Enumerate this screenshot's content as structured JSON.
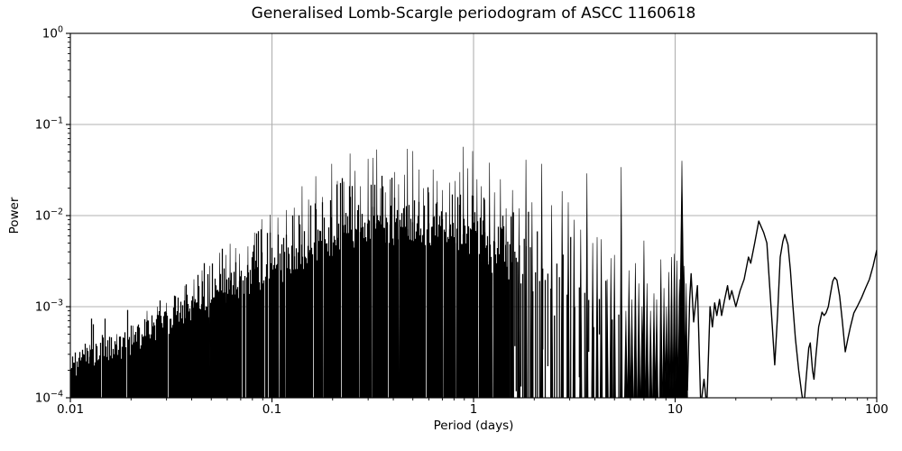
{
  "figure": {
    "title": "Generalised Lomb-Scargle periodogram of ASCC 1160618",
    "xlabel": "Period (days)",
    "ylabel": "Power",
    "background_color": "#ffffff",
    "text_color": "#000000"
  },
  "chart_data": {
    "type": "line",
    "title": "Generalised Lomb-Scargle periodogram of ASCC 1160618",
    "xlabel": "Period (days)",
    "ylabel": "Power",
    "xscale": "log",
    "yscale": "log",
    "xlim": [
      0.01,
      100
    ],
    "ylim": [
      0.0001,
      1
    ],
    "grid": true,
    "grid_color": "#b0b0b0",
    "line_color": "#000000",
    "x_ticks": {
      "values": [
        0.01,
        0.1,
        1,
        10,
        100
      ],
      "labels": [
        "0.01",
        "0.1",
        "1",
        "10",
        "100"
      ]
    },
    "y_ticks": {
      "values": [
        1,
        0.1,
        0.01,
        0.001,
        0.0001
      ],
      "base": "10",
      "exponents": [
        "0",
        "−1",
        "−2",
        "−3",
        "−4"
      ]
    },
    "dense_region": [
      0.01,
      5.3
    ],
    "noise_seed": 9,
    "noise_envelope_top": [
      [
        0.01,
        0.00028
      ],
      [
        0.013,
        0.00036
      ],
      [
        0.016,
        0.00042
      ],
      [
        0.02,
        0.00055
      ],
      [
        0.024,
        0.0008
      ],
      [
        0.03,
        0.001
      ],
      [
        0.037,
        0.0015
      ],
      [
        0.045,
        0.0022
      ],
      [
        0.055,
        0.0032
      ],
      [
        0.07,
        0.0038
      ],
      [
        0.08,
        0.0055
      ],
      [
        0.1,
        0.008
      ],
      [
        0.13,
        0.01
      ],
      [
        0.16,
        0.013
      ],
      [
        0.2,
        0.018
      ],
      [
        0.25,
        0.022
      ],
      [
        0.3,
        0.022
      ],
      [
        0.4,
        0.02
      ],
      [
        0.5,
        0.018
      ],
      [
        0.65,
        0.016
      ],
      [
        0.8,
        0.016
      ],
      [
        1.0,
        0.017
      ],
      [
        1.2,
        0.013
      ],
      [
        1.5,
        0.011
      ],
      [
        2.0,
        0.009
      ],
      [
        2.5,
        0.007
      ],
      [
        3.0,
        0.0055
      ],
      [
        4.0,
        0.0035
      ],
      [
        5.3,
        0.0025
      ]
    ],
    "noise_body_top": [
      [
        0.01,
        0.00022
      ],
      [
        0.02,
        0.0004
      ],
      [
        0.03,
        0.00065
      ],
      [
        0.05,
        0.0011
      ],
      [
        0.07,
        0.0016
      ],
      [
        0.1,
        0.0022
      ],
      [
        0.15,
        0.0032
      ],
      [
        0.2,
        0.0042
      ],
      [
        0.3,
        0.006
      ],
      [
        0.5,
        0.0065
      ],
      [
        0.7,
        0.0055
      ],
      [
        1.0,
        0.0045
      ],
      [
        1.3,
        0.003
      ],
      [
        1.7,
        0.002
      ],
      [
        2.2,
        0.0013
      ],
      [
        3.0,
        0.0008
      ],
      [
        4.0,
        0.00055
      ],
      [
        5.3,
        0.0004
      ]
    ],
    "peaks": [
      [
        0.0125,
        0.00038
      ],
      [
        0.0145,
        0.00042
      ],
      [
        0.017,
        0.0005
      ],
      [
        0.0205,
        0.00062
      ],
      [
        0.024,
        0.0009
      ],
      [
        0.027,
        0.001
      ],
      [
        0.03,
        0.0011
      ],
      [
        0.033,
        0.0013
      ],
      [
        0.037,
        0.0017
      ],
      [
        0.041,
        0.002
      ],
      [
        0.045,
        0.0025
      ],
      [
        0.049,
        0.0028
      ],
      [
        0.055,
        0.0039
      ],
      [
        0.059,
        0.0037
      ],
      [
        0.062,
        0.0049
      ],
      [
        0.066,
        0.0044
      ],
      [
        0.069,
        0.0038
      ],
      [
        0.076,
        0.0046
      ],
      [
        0.082,
        0.0065
      ],
      [
        0.089,
        0.0091
      ],
      [
        0.098,
        0.0102
      ],
      [
        0.107,
        0.0095
      ],
      [
        0.118,
        0.0115
      ],
      [
        0.129,
        0.0122
      ],
      [
        0.141,
        0.021
      ],
      [
        0.152,
        0.015
      ],
      [
        0.165,
        0.027
      ],
      [
        0.178,
        0.016
      ],
      [
        0.198,
        0.037
      ],
      [
        0.211,
        0.024
      ],
      [
        0.227,
        0.0235
      ],
      [
        0.244,
        0.048
      ],
      [
        0.258,
        0.031
      ],
      [
        0.275,
        0.021
      ],
      [
        0.3,
        0.042
      ],
      [
        0.317,
        0.043
      ],
      [
        0.331,
        0.053
      ],
      [
        0.346,
        0.02
      ],
      [
        0.365,
        0.018
      ],
      [
        0.385,
        0.025
      ],
      [
        0.405,
        0.03
      ],
      [
        0.425,
        0.022
      ],
      [
        0.455,
        0.028
      ],
      [
        0.47,
        0.054
      ],
      [
        0.5,
        0.051
      ],
      [
        0.535,
        0.032
      ],
      [
        0.565,
        0.02
      ],
      [
        0.6,
        0.018
      ],
      [
        0.63,
        0.032
      ],
      [
        0.66,
        0.024
      ],
      [
        0.7,
        0.019
      ],
      [
        0.76,
        0.023
      ],
      [
        0.81,
        0.024
      ],
      [
        0.855,
        0.03
      ],
      [
        0.89,
        0.057
      ],
      [
        0.935,
        0.033
      ],
      [
        0.99,
        0.051
      ],
      [
        1.04,
        0.025
      ],
      [
        1.09,
        0.021
      ],
      [
        1.14,
        0.015
      ],
      [
        1.2,
        0.038
      ],
      [
        1.27,
        0.018
      ],
      [
        1.36,
        0.025
      ],
      [
        1.45,
        0.012
      ],
      [
        1.56,
        0.019
      ],
      [
        1.68,
        0.012
      ],
      [
        1.82,
        0.041
      ],
      [
        1.95,
        0.014
      ],
      [
        2.18,
        0.037
      ],
      [
        2.44,
        0.013
      ],
      [
        2.75,
        0.0185
      ],
      [
        2.95,
        0.014
      ],
      [
        3.15,
        0.009
      ],
      [
        3.4,
        0.007
      ],
      [
        3.65,
        0.029
      ],
      [
        3.9,
        0.005
      ],
      [
        4.1,
        0.0058
      ],
      [
        4.3,
        0.0055
      ],
      [
        4.6,
        0.002
      ],
      [
        4.8,
        0.0034
      ],
      [
        5.0,
        0.0037
      ],
      [
        5.4,
        0.034
      ],
      [
        5.7,
        0.0009
      ],
      [
        5.9,
        0.0025
      ],
      [
        6.1,
        0.0012
      ],
      [
        6.35,
        0.003
      ],
      [
        6.6,
        0.0018
      ],
      [
        6.85,
        0.001
      ],
      [
        7.0,
        0.0053
      ],
      [
        7.25,
        0.0018
      ],
      [
        7.55,
        0.0009
      ],
      [
        7.85,
        0.0014
      ],
      [
        8.1,
        0.0012
      ],
      [
        8.5,
        0.0033
      ],
      [
        8.8,
        0.0016
      ],
      [
        9.05,
        0.001
      ],
      [
        9.3,
        0.0024
      ],
      [
        9.6,
        0.0035
      ],
      [
        9.9,
        0.0038
      ],
      [
        10.2,
        0.0032
      ],
      [
        10.5,
        0.002
      ],
      [
        10.8,
        0.04
      ],
      [
        11.1,
        0.0028
      ],
      [
        11.35,
        0.0018
      ]
    ],
    "smooth_tail": [
      [
        11.5,
        0.00012
      ],
      [
        11.8,
        0.0012
      ],
      [
        12.0,
        0.0023
      ],
      [
        12.35,
        0.00068
      ],
      [
        12.9,
        0.0017
      ],
      [
        13.4,
        8e-05
      ],
      [
        13.9,
        0.00016
      ],
      [
        14.35,
        8e-05
      ],
      [
        14.9,
        0.001
      ],
      [
        15.3,
        0.0006
      ],
      [
        15.7,
        0.0011
      ],
      [
        16.1,
        0.0008
      ],
      [
        16.6,
        0.0012
      ],
      [
        17.0,
        0.0008
      ],
      [
        17.6,
        0.0012
      ],
      [
        18.2,
        0.0017
      ],
      [
        18.6,
        0.0012
      ],
      [
        19.1,
        0.0015
      ],
      [
        20.0,
        0.001
      ],
      [
        21.0,
        0.0015
      ],
      [
        22.0,
        0.002
      ],
      [
        23.1,
        0.0035
      ],
      [
        23.7,
        0.003
      ],
      [
        24.8,
        0.005
      ],
      [
        26.0,
        0.0087
      ],
      [
        27.5,
        0.0065
      ],
      [
        28.5,
        0.005
      ],
      [
        29.3,
        0.002
      ],
      [
        30.2,
        0.0007
      ],
      [
        31.2,
        0.00023
      ],
      [
        32.2,
        0.0008
      ],
      [
        33.2,
        0.0035
      ],
      [
        34.2,
        0.0052
      ],
      [
        35.0,
        0.0062
      ],
      [
        36.3,
        0.0048
      ],
      [
        37.3,
        0.0025
      ],
      [
        38.3,
        0.0011
      ],
      [
        39.5,
        0.00045
      ],
      [
        41.0,
        0.0002
      ],
      [
        42.5,
        0.00011
      ],
      [
        43.5,
        8e-05
      ],
      [
        44.8,
        0.00018
      ],
      [
        46.0,
        0.00035
      ],
      [
        46.8,
        0.0004
      ],
      [
        48.0,
        0.0002
      ],
      [
        48.8,
        0.00016
      ],
      [
        50.0,
        0.0003
      ],
      [
        51.5,
        0.0006
      ],
      [
        53.5,
        0.00087
      ],
      [
        54.8,
        0.0008
      ],
      [
        56.0,
        0.00085
      ],
      [
        57.5,
        0.001
      ],
      [
        59.0,
        0.0014
      ],
      [
        60.5,
        0.0019
      ],
      [
        61.8,
        0.0021
      ],
      [
        63.5,
        0.00195
      ],
      [
        65.5,
        0.0013
      ],
      [
        67.5,
        0.0007
      ],
      [
        69.8,
        0.00032
      ],
      [
        72.0,
        0.00045
      ],
      [
        74.0,
        0.0006
      ],
      [
        77.0,
        0.00085
      ],
      [
        80.0,
        0.001
      ],
      [
        84.0,
        0.00125
      ],
      [
        88.0,
        0.0016
      ],
      [
        92.0,
        0.002
      ],
      [
        96.0,
        0.0028
      ],
      [
        100.0,
        0.0042
      ]
    ]
  }
}
